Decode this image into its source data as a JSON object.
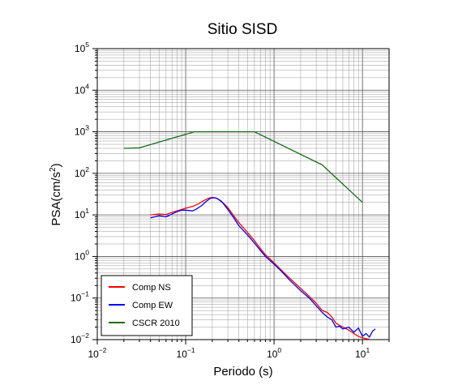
{
  "chart_data": {
    "type": "line",
    "title": "Sitio SISD",
    "xlabel": "Periodo (s)",
    "ylabel": "PSA(cm/s2)",
    "xscale": "log",
    "yscale": "log",
    "xlim": [
      0.01,
      20
    ],
    "ylim": [
      0.01,
      100000
    ],
    "x_tick_labels": [
      {
        "value": 0.01,
        "base": "10",
        "exp": "−2"
      },
      {
        "value": 0.1,
        "base": "10",
        "exp": "−1"
      },
      {
        "value": 1,
        "base": "10",
        "exp": "0"
      },
      {
        "value": 10,
        "base": "10",
        "exp": "1"
      }
    ],
    "y_tick_labels": [
      {
        "value": 0.01,
        "base": "10",
        "exp": "−2"
      },
      {
        "value": 0.1,
        "base": "10",
        "exp": "−1"
      },
      {
        "value": 1,
        "base": "10",
        "exp": "0"
      },
      {
        "value": 10,
        "base": "10",
        "exp": "1"
      },
      {
        "value": 100,
        "base": "10",
        "exp": "2"
      },
      {
        "value": 1000,
        "base": "10",
        "exp": "3"
      },
      {
        "value": 10000,
        "base": "10",
        "exp": "4"
      },
      {
        "value": 100000,
        "base": "10",
        "exp": "5"
      }
    ],
    "grid": true,
    "legend_position": "bottom-left",
    "series": [
      {
        "name": "Comp NS",
        "color": "#ff0000",
        "points": [
          [
            0.04,
            10
          ],
          [
            0.05,
            10.5
          ],
          [
            0.06,
            10.2
          ],
          [
            0.07,
            11.5
          ],
          [
            0.08,
            12.5
          ],
          [
            0.09,
            13.5
          ],
          [
            0.1,
            14.5
          ],
          [
            0.12,
            16
          ],
          [
            0.14,
            18.5
          ],
          [
            0.16,
            22
          ],
          [
            0.18,
            25
          ],
          [
            0.2,
            26.5
          ],
          [
            0.22,
            25.5
          ],
          [
            0.25,
            22
          ],
          [
            0.3,
            15
          ],
          [
            0.35,
            9.5
          ],
          [
            0.4,
            6.5
          ],
          [
            0.5,
            3.8
          ],
          [
            0.6,
            2.4
          ],
          [
            0.7,
            1.55
          ],
          [
            0.8,
            1.1
          ],
          [
            1.0,
            0.7
          ],
          [
            1.2,
            0.48
          ],
          [
            1.5,
            0.3
          ],
          [
            2.0,
            0.17
          ],
          [
            2.5,
            0.11
          ],
          [
            3.0,
            0.075
          ],
          [
            3.5,
            0.05
          ],
          [
            4.0,
            0.045
          ],
          [
            4.5,
            0.035
          ],
          [
            5.0,
            0.025
          ],
          [
            5.5,
            0.022
          ],
          [
            6.0,
            0.02
          ],
          [
            7.0,
            0.017
          ],
          [
            8.0,
            0.014
          ],
          [
            9.0,
            0.012
          ],
          [
            10.0,
            0.011
          ],
          [
            11.0,
            0.0105
          ],
          [
            12.0,
            0.0102
          ]
        ]
      },
      {
        "name": "Comp EW",
        "color": "#0000ff",
        "points": [
          [
            0.04,
            8.5
          ],
          [
            0.05,
            9.5
          ],
          [
            0.06,
            9.0
          ],
          [
            0.07,
            10.5
          ],
          [
            0.08,
            12
          ],
          [
            0.09,
            13
          ],
          [
            0.1,
            13
          ],
          [
            0.12,
            12.5
          ],
          [
            0.13,
            13.5
          ],
          [
            0.15,
            16.5
          ],
          [
            0.17,
            21
          ],
          [
            0.19,
            25
          ],
          [
            0.21,
            26
          ],
          [
            0.23,
            24.5
          ],
          [
            0.26,
            20
          ],
          [
            0.3,
            13.5
          ],
          [
            0.35,
            8.5
          ],
          [
            0.4,
            5.5
          ],
          [
            0.5,
            3.3
          ],
          [
            0.6,
            2.1
          ],
          [
            0.7,
            1.4
          ],
          [
            0.8,
            1.0
          ],
          [
            1.0,
            0.65
          ],
          [
            1.2,
            0.45
          ],
          [
            1.5,
            0.27
          ],
          [
            2.0,
            0.15
          ],
          [
            2.5,
            0.1
          ],
          [
            3.0,
            0.065
          ],
          [
            3.5,
            0.045
          ],
          [
            4.0,
            0.035
          ],
          [
            4.5,
            0.03
          ],
          [
            5.0,
            0.02
          ],
          [
            5.5,
            0.021
          ],
          [
            6.0,
            0.018
          ],
          [
            7.0,
            0.02
          ],
          [
            8.0,
            0.015
          ],
          [
            9.0,
            0.019
          ],
          [
            10.0,
            0.012
          ],
          [
            11.0,
            0.014
          ],
          [
            12.0,
            0.0115
          ],
          [
            13.0,
            0.016
          ],
          [
            14.0,
            0.018
          ]
        ]
      },
      {
        "name": "CSCR 2010",
        "color": "#1a6b1a",
        "points": [
          [
            0.02,
            400
          ],
          [
            0.03,
            410
          ],
          [
            0.125,
            1000
          ],
          [
            0.6,
            1000
          ],
          [
            3.5,
            160
          ],
          [
            10,
            20
          ]
        ]
      }
    ]
  }
}
